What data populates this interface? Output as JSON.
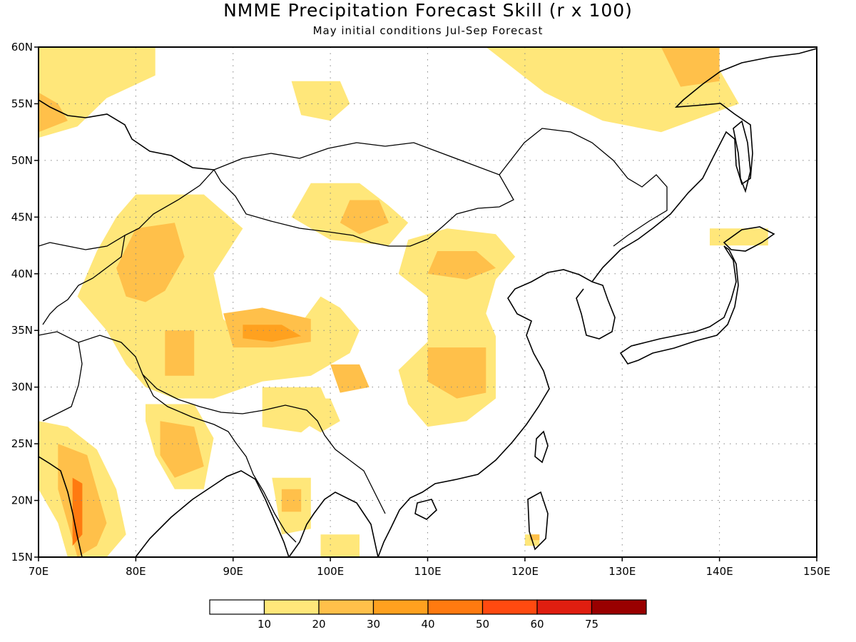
{
  "title": "NMME Precipitation Forecast Skill (r x 100)",
  "subtitle": "May initial conditions   Jul-Sep Forecast",
  "map": {
    "lon_range": [
      70,
      150
    ],
    "lat_range": [
      15,
      60
    ],
    "lon_ticks": [
      {
        "value": 70,
        "label": "70E"
      },
      {
        "value": 80,
        "label": "80E"
      },
      {
        "value": 90,
        "label": "90E"
      },
      {
        "value": 100,
        "label": "100E"
      },
      {
        "value": 110,
        "label": "110E"
      },
      {
        "value": 120,
        "label": "120E"
      },
      {
        "value": 130,
        "label": "130E"
      },
      {
        "value": 140,
        "label": "140E"
      },
      {
        "value": 150,
        "label": "150E"
      }
    ],
    "lat_ticks": [
      {
        "value": 15,
        "label": "15N"
      },
      {
        "value": 20,
        "label": "20N"
      },
      {
        "value": 25,
        "label": "25N"
      },
      {
        "value": 30,
        "label": "30N"
      },
      {
        "value": 35,
        "label": "35N"
      },
      {
        "value": 40,
        "label": "40N"
      },
      {
        "value": 45,
        "label": "45N"
      },
      {
        "value": 50,
        "label": "50N"
      },
      {
        "value": 55,
        "label": "55N"
      },
      {
        "value": 60,
        "label": "60N"
      }
    ],
    "grid": "dotted",
    "skill_regions": [
      {
        "level": 10,
        "points": [
          [
            70,
            60
          ],
          [
            82,
            60
          ],
          [
            82,
            57.5
          ],
          [
            77,
            55.5
          ],
          [
            74,
            53
          ],
          [
            70,
            52
          ]
        ]
      },
      {
        "level": 20,
        "points": [
          [
            70,
            56
          ],
          [
            72,
            55
          ],
          [
            73,
            53.5
          ],
          [
            70,
            52.5
          ]
        ]
      },
      {
        "level": 10,
        "points": [
          [
            80,
            47
          ],
          [
            87,
            47
          ],
          [
            91,
            44
          ],
          [
            88,
            40
          ],
          [
            89,
            36
          ],
          [
            92,
            33.5
          ],
          [
            96,
            34.5
          ],
          [
            99,
            38
          ],
          [
            101,
            37
          ],
          [
            103,
            35
          ],
          [
            102,
            33
          ],
          [
            98,
            31
          ],
          [
            93,
            30.5
          ],
          [
            88,
            29
          ],
          [
            84,
            29
          ],
          [
            81,
            30
          ],
          [
            79,
            32
          ],
          [
            77,
            35
          ],
          [
            74,
            38
          ],
          [
            76,
            42
          ],
          [
            78,
            45
          ]
        ]
      },
      {
        "level": 20,
        "points": [
          [
            80,
            44
          ],
          [
            84,
            44.5
          ],
          [
            85,
            41.5
          ],
          [
            83,
            38.5
          ],
          [
            81,
            37.5
          ],
          [
            79,
            38
          ],
          [
            78,
            40.5
          ]
        ]
      },
      {
        "level": 20,
        "points": [
          [
            89,
            36.5
          ],
          [
            93,
            37
          ],
          [
            98,
            36
          ],
          [
            98,
            34
          ],
          [
            94,
            33.5
          ],
          [
            90,
            33.5
          ]
        ]
      },
      {
        "level": 30,
        "points": [
          [
            91,
            35.5
          ],
          [
            95,
            35.5
          ],
          [
            97,
            34.5
          ],
          [
            94,
            34
          ],
          [
            91,
            34.3
          ]
        ]
      },
      {
        "level": 20,
        "points": [
          [
            83,
            35
          ],
          [
            86,
            35
          ],
          [
            86,
            31
          ],
          [
            83,
            31
          ]
        ]
      },
      {
        "level": 10,
        "points": [
          [
            97,
            29
          ],
          [
            100,
            29
          ],
          [
            101,
            27
          ],
          [
            99,
            26
          ],
          [
            97,
            27
          ]
        ]
      },
      {
        "level": 10,
        "points": [
          [
            98,
            48
          ],
          [
            103,
            48
          ],
          [
            106,
            46
          ],
          [
            108,
            44.5
          ],
          [
            106,
            42.5
          ],
          [
            100,
            43
          ],
          [
            96,
            45
          ]
        ]
      },
      {
        "level": 20,
        "points": [
          [
            102,
            46.5
          ],
          [
            105,
            46.5
          ],
          [
            106,
            44.5
          ],
          [
            103,
            43.5
          ],
          [
            101,
            44.5
          ]
        ]
      },
      {
        "level": 10,
        "points": [
          [
            108,
            43
          ],
          [
            112,
            44
          ],
          [
            117,
            43.5
          ],
          [
            119,
            41.5
          ],
          [
            117,
            39.5
          ],
          [
            116,
            36.5
          ],
          [
            117,
            34.5
          ],
          [
            117,
            29
          ],
          [
            114,
            27
          ],
          [
            110,
            26.5
          ],
          [
            108,
            28.5
          ],
          [
            107,
            31.5
          ],
          [
            110,
            34
          ],
          [
            110,
            38
          ],
          [
            107,
            40
          ]
        ]
      },
      {
        "level": 20,
        "points": [
          [
            111,
            42
          ],
          [
            115,
            42
          ],
          [
            117,
            40.5
          ],
          [
            114,
            39.5
          ],
          [
            110,
            40
          ]
        ]
      },
      {
        "level": 20,
        "points": [
          [
            110,
            33.5
          ],
          [
            116,
            33.5
          ],
          [
            116,
            29.5
          ],
          [
            113,
            29
          ],
          [
            110,
            30.5
          ]
        ]
      },
      {
        "level": 10,
        "points": [
          [
            93,
            30
          ],
          [
            99,
            30
          ],
          [
            100,
            28
          ],
          [
            97,
            26
          ],
          [
            93,
            26.5
          ]
        ]
      },
      {
        "level": 20,
        "points": [
          [
            100,
            32
          ],
          [
            103,
            32
          ],
          [
            104,
            30
          ],
          [
            101,
            29.5
          ]
        ]
      },
      {
        "level": 10,
        "points": [
          [
            81,
            28.5
          ],
          [
            86,
            28.5
          ],
          [
            88,
            25.5
          ],
          [
            87,
            21
          ],
          [
            84,
            21
          ],
          [
            82,
            24
          ],
          [
            81,
            27
          ]
        ]
      },
      {
        "level": 20,
        "points": [
          [
            82.5,
            27
          ],
          [
            86,
            26.5
          ],
          [
            87,
            23
          ],
          [
            84,
            22
          ],
          [
            82.5,
            24
          ]
        ]
      },
      {
        "level": 10,
        "points": [
          [
            70,
            27
          ],
          [
            73,
            26.5
          ],
          [
            76,
            24.5
          ],
          [
            78,
            21
          ],
          [
            79,
            17
          ],
          [
            77,
            15
          ],
          [
            73,
            15
          ],
          [
            72,
            18
          ],
          [
            70,
            21
          ]
        ]
      },
      {
        "level": 20,
        "points": [
          [
            72,
            25
          ],
          [
            75,
            24
          ],
          [
            76,
            21
          ],
          [
            77,
            18
          ],
          [
            76,
            16
          ],
          [
            74,
            15
          ],
          [
            73,
            18
          ],
          [
            72,
            21
          ]
        ]
      },
      {
        "level": 40,
        "points": [
          [
            73.5,
            22
          ],
          [
            74.5,
            21.5
          ],
          [
            74.5,
            17
          ],
          [
            73.5,
            16
          ]
        ]
      },
      {
        "level": 10,
        "points": [
          [
            94,
            22
          ],
          [
            98,
            22
          ],
          [
            98,
            17.5
          ],
          [
            95,
            17
          ]
        ]
      },
      {
        "level": 20,
        "points": [
          [
            95,
            21
          ],
          [
            97,
            21
          ],
          [
            97,
            19
          ],
          [
            95,
            19
          ]
        ]
      },
      {
        "level": 10,
        "points": [
          [
            99,
            17
          ],
          [
            103,
            17
          ],
          [
            103,
            15
          ],
          [
            99,
            15
          ]
        ]
      },
      {
        "level": 10,
        "points": [
          [
            120,
            17
          ],
          [
            121.5,
            17
          ],
          [
            121.5,
            16
          ],
          [
            120,
            16
          ]
        ]
      },
      {
        "level": 20,
        "points": [
          [
            120.5,
            17
          ],
          [
            121.5,
            17
          ],
          [
            121.5,
            16.5
          ],
          [
            120.5,
            16.5
          ]
        ]
      },
      {
        "level": 10,
        "points": [
          [
            116,
            60
          ],
          [
            135,
            60
          ],
          [
            140,
            58
          ],
          [
            142,
            55
          ],
          [
            134,
            52.5
          ],
          [
            128,
            53.5
          ],
          [
            122,
            56
          ]
        ]
      },
      {
        "level": 20,
        "points": [
          [
            134,
            60
          ],
          [
            140,
            60
          ],
          [
            140,
            57
          ],
          [
            136,
            56.5
          ]
        ]
      },
      {
        "level": 10,
        "points": [
          [
            96,
            57
          ],
          [
            101,
            57
          ],
          [
            102,
            55
          ],
          [
            100,
            53.5
          ],
          [
            97,
            54
          ]
        ]
      },
      {
        "level": 10,
        "points": [
          [
            139,
            44
          ],
          [
            145,
            44
          ],
          [
            145,
            42.5
          ],
          [
            139,
            42.5
          ]
        ]
      }
    ]
  },
  "colorbar": {
    "labels": [
      "10",
      "20",
      "30",
      "40",
      "50",
      "60",
      "75"
    ],
    "colors": [
      "#ffffff",
      "#ffe77a",
      "#ffc04a",
      "#ffa11f",
      "#ff7a10",
      "#ff4a10",
      "#e01e10",
      "#990000"
    ]
  }
}
